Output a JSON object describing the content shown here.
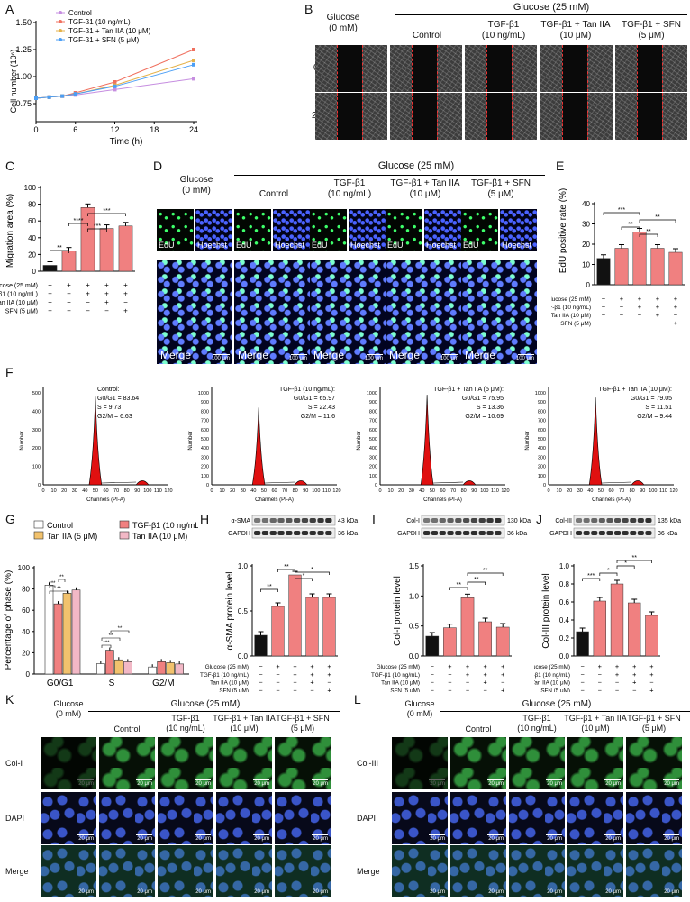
{
  "panel_letters": [
    "A",
    "B",
    "C",
    "D",
    "E",
    "F",
    "G",
    "H",
    "I",
    "J",
    "K",
    "L"
  ],
  "colors": {
    "control": "#c68ee0",
    "tgf": "#f0705f",
    "tan": "#e5b24a",
    "sfn": "#4a9ef5",
    "bar_black": "#111111",
    "bar_red": "#f08080",
    "tan5": "#f2c26d",
    "tan10": "#f2b8c6"
  },
  "panelA": {
    "ylabel": "Cell number (10⁶)",
    "xlabel": "Time (h)",
    "yticks": [
      "0.75",
      "1.00",
      "1.25",
      "1.50"
    ],
    "xticks": [
      "0",
      "6",
      "12",
      "18",
      "24"
    ],
    "legend": [
      "Control",
      "TGF-β1 (10 ng/mL)",
      "TGF-β1 + Tan IIA (10 μM)",
      "TGF-β1 + SFN (5 μM)"
    ]
  },
  "chart_data": [
    {
      "type": "line",
      "panel": "A",
      "xlabel": "Time (h)",
      "ylabel": "Cell number (10⁶)",
      "x": [
        0,
        2,
        4,
        6,
        12,
        24
      ],
      "ylim": [
        0.75,
        1.5
      ],
      "series": [
        {
          "name": "Control",
          "values": [
            0.8,
            0.81,
            0.82,
            0.83,
            0.88,
            0.98
          ]
        },
        {
          "name": "TGF-β1 (10 ng/mL)",
          "values": [
            0.8,
            0.81,
            0.82,
            0.85,
            0.95,
            1.25
          ]
        },
        {
          "name": "TGF-β1 + Tan IIA (10 μM)",
          "values": [
            0.8,
            0.81,
            0.82,
            0.84,
            0.92,
            1.15
          ]
        },
        {
          "name": "TGF-β1 + SFN (5 μM)",
          "values": [
            0.8,
            0.81,
            0.82,
            0.84,
            0.91,
            1.11
          ]
        }
      ]
    },
    {
      "type": "bar",
      "panel": "C",
      "ylabel": "Migration area (%)",
      "ylim": [
        0,
        100
      ],
      "values": [
        7,
        24,
        76,
        51,
        54
      ],
      "colors": [
        "#111111",
        "#f08080",
        "#f08080",
        "#f08080",
        "#f08080"
      ]
    },
    {
      "type": "bar",
      "panel": "E",
      "ylabel": "EdU positive rate (%)",
      "ylim": [
        0,
        40
      ],
      "values": [
        13,
        18,
        26,
        18,
        16
      ],
      "colors": [
        "#111111",
        "#f08080",
        "#f08080",
        "#f08080",
        "#f08080"
      ]
    },
    {
      "type": "bar",
      "panel": "H",
      "ylabel": "α-SMA protein level",
      "ylim": [
        0,
        1.0
      ],
      "values": [
        0.23,
        0.55,
        0.9,
        0.65,
        0.65
      ],
      "colors": [
        "#111111",
        "#f08080",
        "#f08080",
        "#f08080",
        "#f08080"
      ]
    },
    {
      "type": "bar",
      "panel": "I",
      "ylabel": "Col-I protein level",
      "ylim": [
        0,
        1.5
      ],
      "values": [
        0.33,
        0.47,
        0.97,
        0.57,
        0.48
      ],
      "colors": [
        "#111111",
        "#f08080",
        "#f08080",
        "#f08080",
        "#f08080"
      ]
    },
    {
      "type": "bar",
      "panel": "J",
      "ylabel": "Col-III protein level",
      "ylim": [
        0,
        1.0
      ],
      "values": [
        0.27,
        0.61,
        0.8,
        0.59,
        0.45
      ],
      "colors": [
        "#111111",
        "#f08080",
        "#f08080",
        "#f08080",
        "#f08080"
      ]
    },
    {
      "type": "bar",
      "panel": "G",
      "ylabel": "Percentage of phase (%)",
      "ylim": [
        0,
        100
      ],
      "categories": [
        "G0/G1",
        "S",
        "G2/M"
      ],
      "series": [
        {
          "name": "Control",
          "values": [
            83.64,
            9.73,
            6.63
          ]
        },
        {
          "name": "TGF-β1 (10 ng/mL)",
          "values": [
            65.97,
            22.43,
            11.6
          ]
        },
        {
          "name": "Tan IIA (5 μM)",
          "values": [
            75.95,
            13.36,
            10.69
          ]
        },
        {
          "name": "Tan IIA (10 μM)",
          "values": [
            79.05,
            11.51,
            9.44
          ]
        }
      ]
    }
  ],
  "panelB": {
    "header": "Glucose (25 mM)",
    "cols": [
      "Glucose\n(0 mM)",
      "Control",
      "TGF-β1\n(10 ng/mL)",
      "TGF-β1 + Tan IIA\n(10 μM)",
      "TGF-β1 + SFN\n(5 μM)"
    ],
    "rows": [
      "0 h",
      "24 h"
    ]
  },
  "panelC": {
    "yticks": [
      "0",
      "20",
      "40",
      "60",
      "80",
      "100"
    ],
    "sig": [
      "**",
      "****",
      "***",
      "***"
    ]
  },
  "panelE": {
    "yticks": [
      "0",
      "10",
      "20",
      "30",
      "40"
    ],
    "sig": [
      "***",
      "**",
      "**",
      "**"
    ]
  },
  "conditions": {
    "labels": [
      "Glucose (25 mM)",
      "TGF-β1 (10 ng/mL)",
      "Tan IIA (10 μM)",
      "SFN (5 μM)"
    ],
    "marks": [
      [
        "−",
        "+",
        "+",
        "+",
        "+"
      ],
      [
        "−",
        "−",
        "+",
        "+",
        "+"
      ],
      [
        "−",
        "−",
        "−",
        "+",
        "−"
      ],
      [
        "−",
        "−",
        "−",
        "−",
        "+"
      ]
    ]
  },
  "panelD": {
    "header": "Glucose (25 mM)",
    "cols": [
      "Glucose\n(0 mM)",
      "Control",
      "TGF-β1\n(10 ng/mL)",
      "TGF-β1 + Tan IIA\n(10 μM)",
      "TGF-β1 + SFN\n(5 μM)"
    ],
    "edu": "EdU",
    "hoechst": "Hoechst",
    "merge": "Merge",
    "scale": "100 μm"
  },
  "panelF": {
    "ylabel": "Number",
    "xlabel": "Channels (PI-A)",
    "xticks": [
      "0",
      "10",
      "20",
      "30",
      "40",
      "50",
      "60",
      "70",
      "80",
      "90",
      "100",
      "110",
      "120"
    ],
    "plots": [
      {
        "title": "Control:",
        "g0": "G0/G1 = 83.64",
        "s": "S = 9.73",
        "g2": "G2/M = 6.63",
        "yticks": [
          "0",
          "100",
          "200",
          "300",
          "400",
          "500"
        ],
        "ymax": 500,
        "peak": 480
      },
      {
        "title": "TGF-β1 (10 ng/mL):",
        "g0": "G0/G1 = 65.97",
        "s": "S = 22.43",
        "g2": "G2/M = 11.6",
        "yticks": [
          "0",
          "100",
          "200",
          "300",
          "400",
          "500",
          "600",
          "700",
          "800",
          "900",
          "1000"
        ],
        "ymax": 1000,
        "peak": 840
      },
      {
        "title": "TGF-β1 + Tan IIA (5 μM):",
        "g0": "G0/G1 = 75.95",
        "s": "S = 13.36",
        "g2": "G2/M = 10.69",
        "yticks": [
          "0",
          "100",
          "200",
          "300",
          "400",
          "500",
          "600",
          "700",
          "800",
          "900",
          "1000"
        ],
        "ymax": 1000,
        "peak": 980
      },
      {
        "title": "TGF-β1 + Tan IIA (10 μM):",
        "g0": "G0/G1 = 79.05",
        "s": "S = 11.51",
        "g2": "G2/M = 9.44",
        "yticks": [
          "0",
          "100",
          "200",
          "300",
          "400",
          "500",
          "600",
          "700",
          "800",
          "900",
          "1000"
        ],
        "ymax": 1000,
        "peak": 950
      }
    ]
  },
  "panelG": {
    "legend": [
      "Control",
      "TGF-β1 (10 ng/mL)",
      "Tan IIA (5 μM)",
      "Tan IIA (10 μM)"
    ],
    "yticks": [
      "0",
      "20",
      "40",
      "60",
      "80",
      "100"
    ],
    "categories": [
      "G0/G1",
      "S",
      "G2/M"
    ]
  },
  "panelH": {
    "blots": [
      "α-SMA",
      "GAPDH"
    ],
    "kda": [
      "43 kDa",
      "36 kDa"
    ],
    "yticks": [
      "0.0",
      "0.5",
      "1.0"
    ],
    "sig": [
      "**",
      "**",
      "*",
      "*"
    ]
  },
  "panelI": {
    "blots": [
      "Col-I",
      "GAPDH"
    ],
    "kda": [
      "130 kDa",
      "36 kDa"
    ],
    "yticks": [
      "0.0",
      "0.5",
      "1.0",
      "1.5"
    ],
    "sig": [
      "**",
      "**",
      "**"
    ]
  },
  "panelJ": {
    "blots": [
      "Col-III",
      "GAPDH"
    ],
    "kda": [
      "135 kDa",
      "36 kDa"
    ],
    "yticks": [
      "0.0",
      "0.2",
      "0.4",
      "0.6",
      "0.8",
      "1.0"
    ],
    "sig": [
      "***",
      "*",
      "*",
      "**"
    ]
  },
  "panelK": {
    "header": "Glucose (25 mM)",
    "cols": [
      "Glucose\n(0 mM)",
      "Control",
      "TGF-β1\n(10 ng/mL)",
      "TGF-β1 + Tan IIA\n(10 μM)",
      "TGF-β1 + SFN\n(5 μM)"
    ],
    "rows": [
      "Col-I",
      "DAPI",
      "Merge"
    ],
    "scale": "20 μm"
  },
  "panelL": {
    "header": "Glucose (25 mM)",
    "cols": [
      "Glucose\n(0 mM)",
      "Control",
      "TGF-β1\n(10 ng/mL)",
      "TGF-β1 + Tan IIA\n(10 μM)",
      "TGF-β1 + SFN\n(5 μM)"
    ],
    "rows": [
      "Col-III",
      "DAPI",
      "Merge"
    ],
    "scale": "20 μm"
  }
}
